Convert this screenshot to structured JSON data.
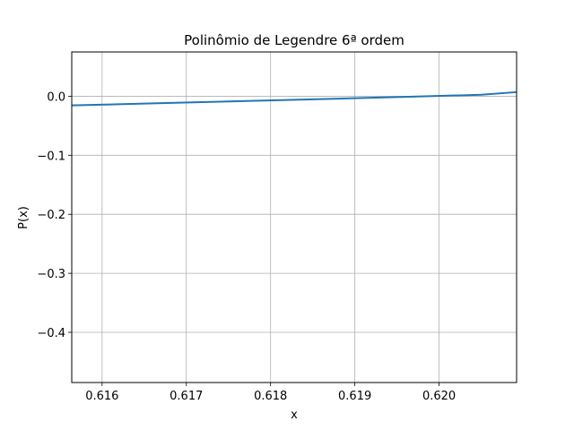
{
  "chart_data": {
    "type": "line",
    "title": "Polinômio de Legendre 6ª ordem",
    "xlabel": "x",
    "ylabel": "P(x)",
    "xlim": [
      0.61564,
      0.62092
    ],
    "ylim": [
      -0.485,
      0.075
    ],
    "grid": true,
    "xticks": [
      0.616,
      0.617,
      0.618,
      0.619,
      0.62
    ],
    "xtick_labels": [
      "0.616",
      "0.617",
      "0.618",
      "0.619",
      "0.620"
    ],
    "yticks": [
      0.0,
      -0.1,
      -0.2,
      -0.3,
      -0.4
    ],
    "ytick_labels": [
      "0.0",
      "−0.1",
      "−0.2",
      "−0.3",
      "−0.4"
    ],
    "series": [
      {
        "color": "#1f77b4",
        "x": [
          0.61564,
          0.6165,
          0.6175,
          0.6185,
          0.6195,
          0.6205,
          0.62092
        ],
        "y": [
          -0.0155,
          -0.0125,
          -0.0088,
          -0.0052,
          -0.0015,
          0.0025,
          0.007
        ]
      }
    ]
  }
}
